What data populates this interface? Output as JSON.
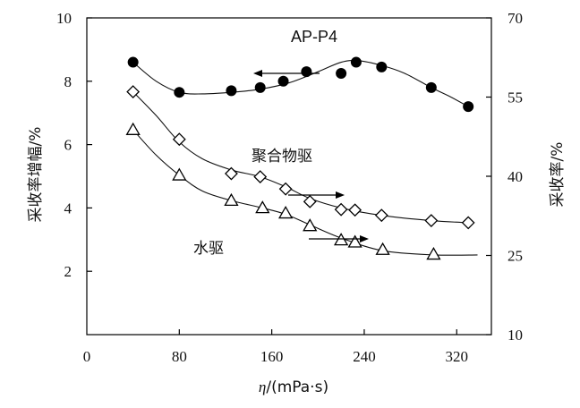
{
  "chart_data": {
    "type": "scatter",
    "title": "",
    "xlabel": "η/(mPa·s)",
    "ylabel_left": "采收率增幅/%",
    "ylabel_right": "采收率/%",
    "xlim": [
      0,
      350
    ],
    "ylim_left": [
      0,
      10
    ],
    "ylim_right": [
      10,
      70
    ],
    "x_ticks": [
      "0",
      "80",
      "160",
      "240",
      "320"
    ],
    "x_tick_values": [
      0,
      80,
      160,
      240,
      320
    ],
    "y_left_ticks": [
      "2",
      "4",
      "6",
      "8",
      "10"
    ],
    "y_left_tick_values": [
      2,
      4,
      6,
      8,
      10
    ],
    "y_right_ticks": [
      "10",
      "25",
      "40",
      "55",
      "70"
    ],
    "y_right_tick_values": [
      10,
      25,
      40,
      55,
      70
    ],
    "grid": false,
    "series": [
      {
        "name": "AP-P4",
        "axis": "left",
        "marker": "filled-circle",
        "x": [
          40,
          80,
          125,
          150,
          170,
          190,
          220,
          233,
          255,
          298,
          330
        ],
        "y": [
          8.6,
          7.65,
          7.7,
          7.8,
          8.0,
          8.3,
          8.25,
          8.6,
          8.45,
          7.8,
          7.2
        ],
        "curve_x": [
          40,
          60,
          80,
          100,
          125,
          150,
          175,
          200,
          220,
          235,
          255,
          275,
          298,
          315,
          330
        ],
        "curve_y": [
          8.6,
          8.0,
          7.65,
          7.6,
          7.65,
          7.75,
          7.95,
          8.3,
          8.6,
          8.65,
          8.5,
          8.25,
          7.8,
          7.5,
          7.2
        ],
        "arrow": "left"
      },
      {
        "name": "聚合物驱",
        "axis": "right",
        "marker": "diamond",
        "x": [
          40,
          80,
          125,
          150,
          172,
          193,
          220,
          232,
          255,
          298,
          330
        ],
        "y": [
          56.0,
          47.0,
          40.5,
          39.9,
          37.6,
          35.2,
          33.7,
          33.6,
          32.6,
          31.6,
          31.2
        ],
        "curve_x": [
          40,
          60,
          80,
          100,
          125,
          150,
          172,
          193,
          220,
          255,
          298,
          330
        ],
        "curve_y": [
          56.0,
          51.5,
          46.5,
          43.3,
          41.2,
          39.9,
          38.0,
          35.8,
          34.0,
          32.6,
          31.6,
          31.2
        ],
        "arrow": "right"
      },
      {
        "name": "水驱",
        "axis": "right",
        "marker": "triangle",
        "x": [
          40,
          80,
          125,
          152,
          172,
          193,
          220,
          232,
          256,
          300
        ],
        "y": [
          48.8,
          40.2,
          35.4,
          34.0,
          33.0,
          30.6,
          27.9,
          27.5,
          26.1,
          25.2
        ],
        "curve_x": [
          40,
          60,
          80,
          100,
          125,
          152,
          172,
          193,
          220,
          256,
          300,
          338
        ],
        "curve_y": [
          48.8,
          44.0,
          40.2,
          37.2,
          35.4,
          34.0,
          32.8,
          30.8,
          28.3,
          25.9,
          25.1,
          25.1
        ],
        "arrow": "right"
      }
    ]
  }
}
